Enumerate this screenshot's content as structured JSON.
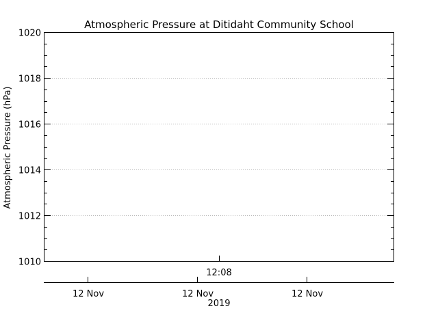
{
  "chart_data": {
    "type": "line",
    "title": "Atmospheric Pressure at Ditidaht Community School",
    "ylabel": "Atmospheric Pressure (hPa)",
    "ylim": [
      1010,
      1020
    ],
    "yticks": [
      1010,
      1012,
      1014,
      1016,
      1018,
      1020
    ],
    "ytick_labels": [
      "1010",
      "1012",
      "1014",
      "1016",
      "1018",
      "1020"
    ],
    "grid": true,
    "x_time_label": "12:08",
    "x_date_labels": [
      "12 Nov",
      "12 Nov",
      "12 Nov"
    ],
    "x_year_label": "2019",
    "series": []
  }
}
